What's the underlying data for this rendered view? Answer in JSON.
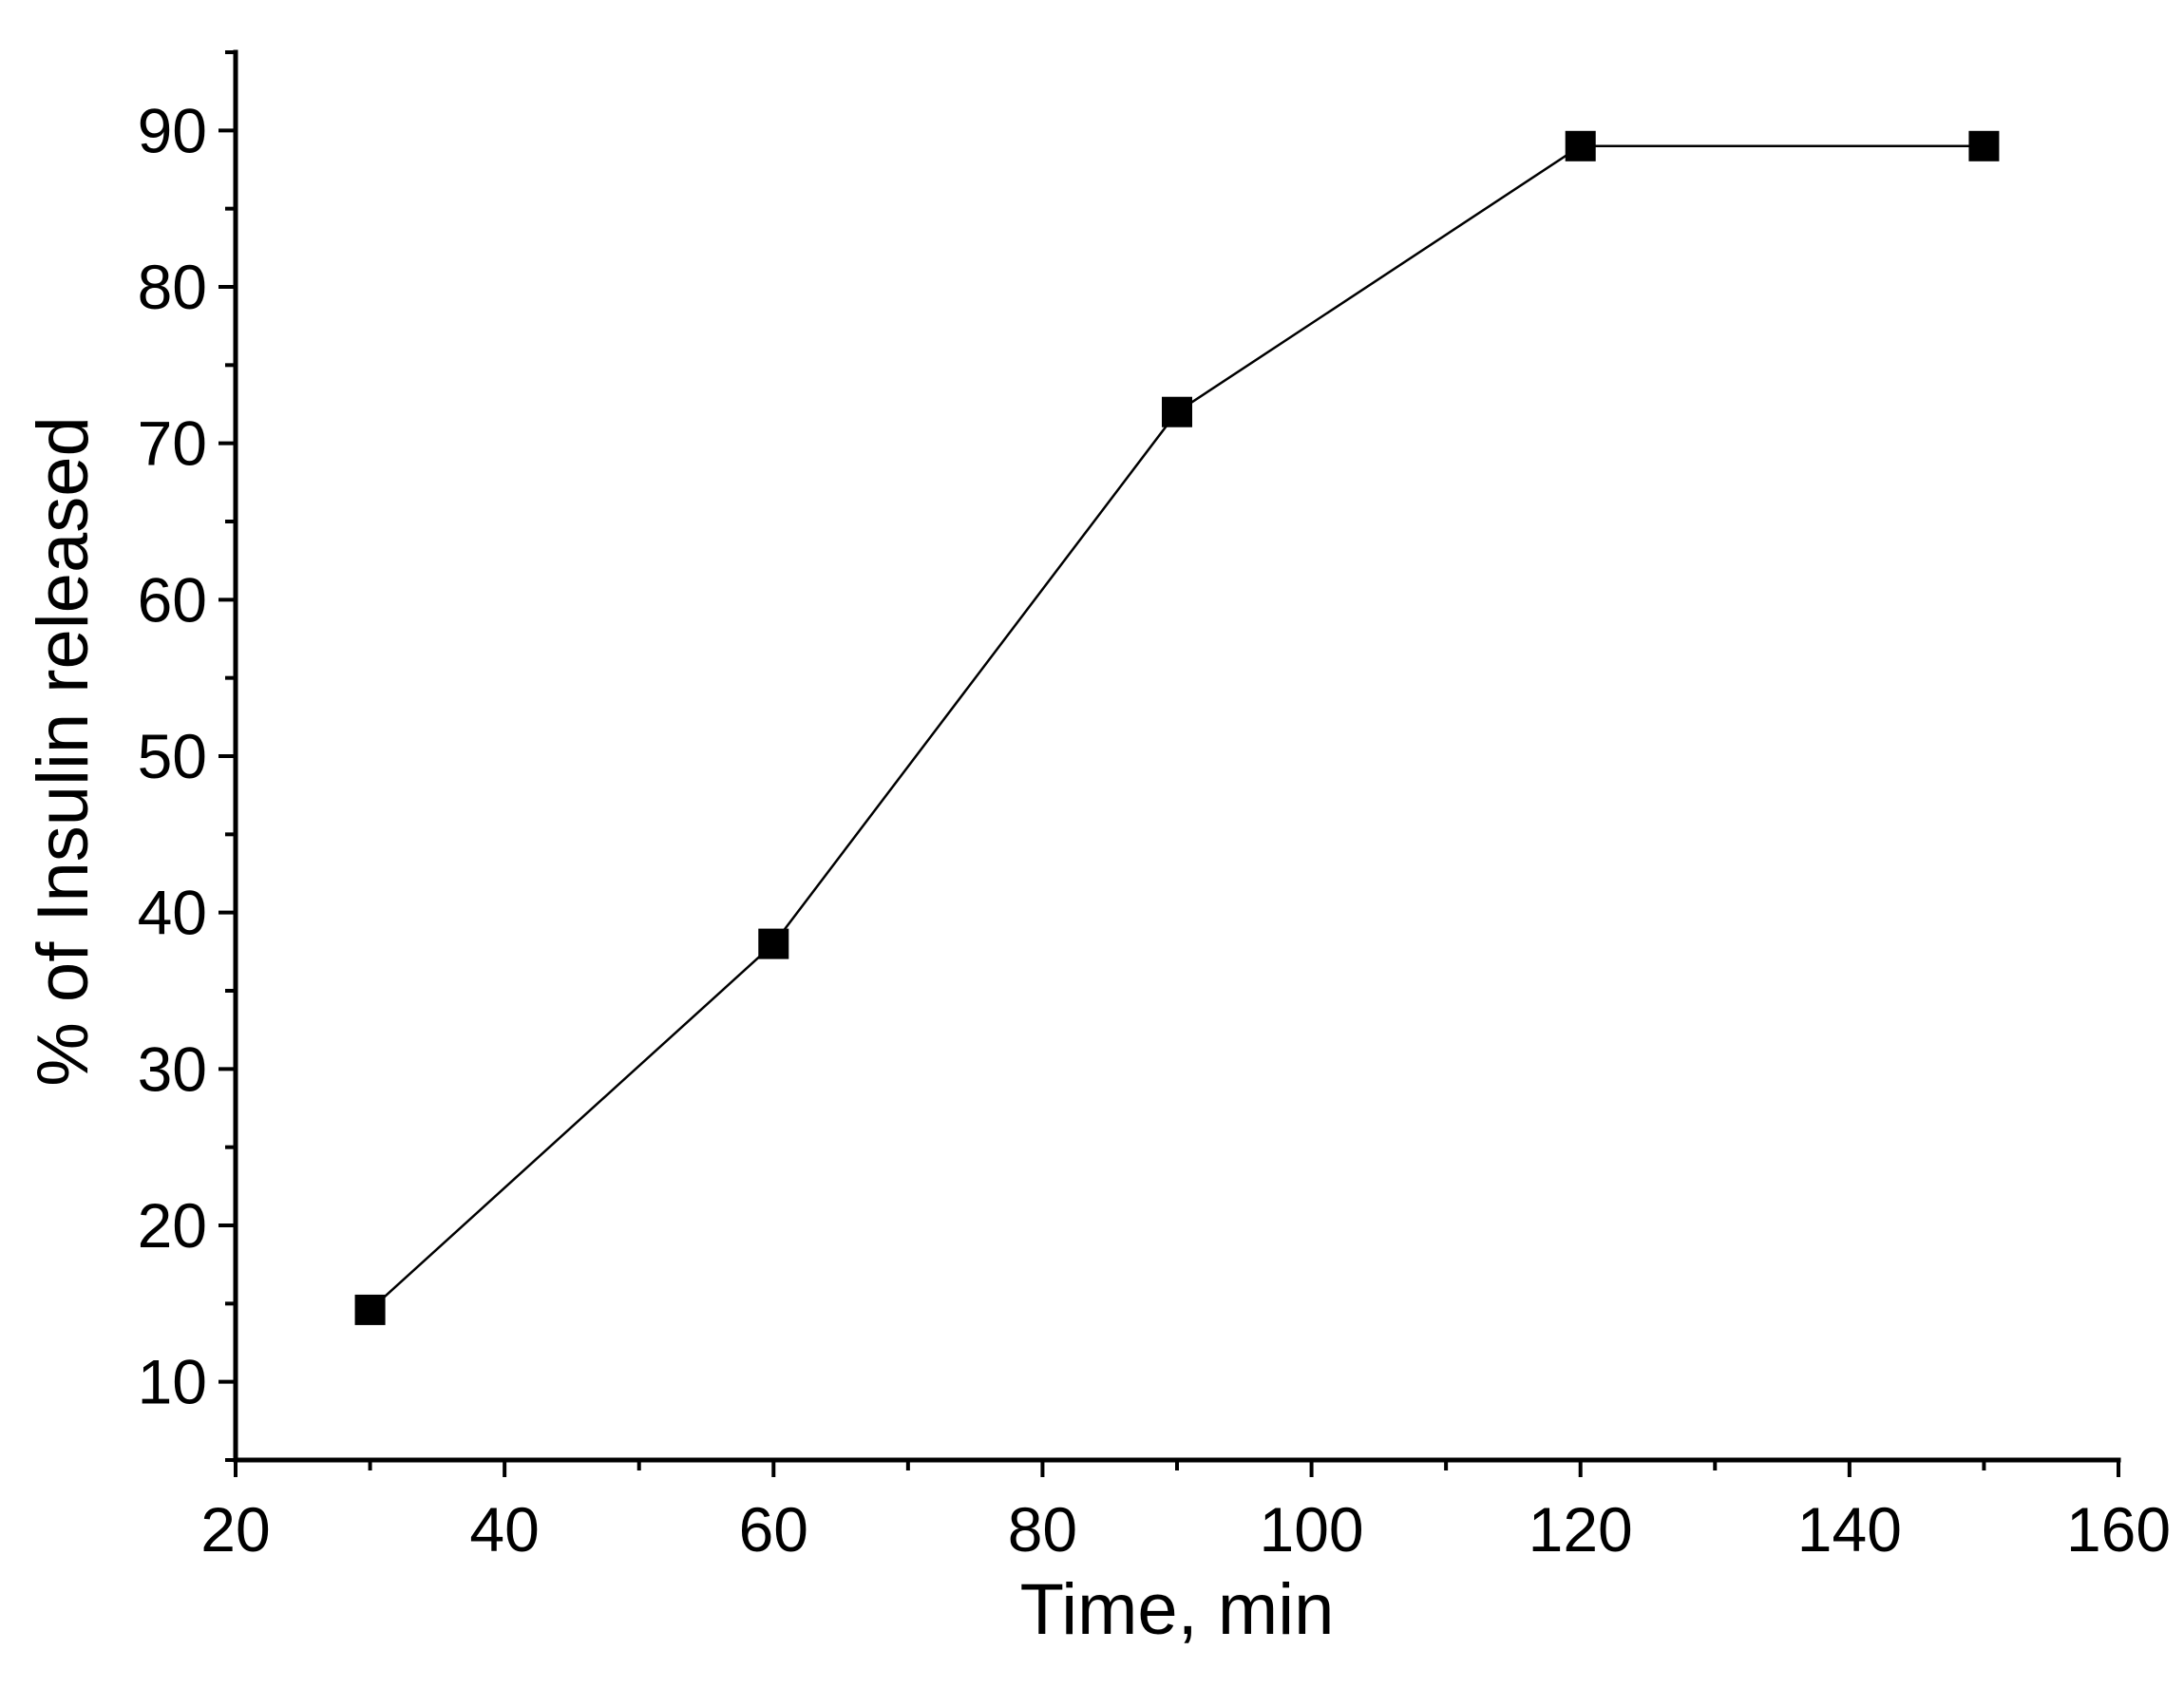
{
  "chart_data": {
    "type": "line",
    "title": "",
    "xlabel": "Time, min",
    "ylabel": "% of Insulin released",
    "xlim": [
      20,
      160
    ],
    "ylim": [
      5,
      95
    ],
    "x_ticks": [
      20,
      40,
      60,
      80,
      100,
      120,
      140,
      160
    ],
    "x_tick_labels": [
      "20",
      "40",
      "60",
      "80",
      "100",
      "120",
      "140",
      "160"
    ],
    "y_ticks": [
      10,
      20,
      30,
      40,
      50,
      60,
      70,
      80,
      90
    ],
    "y_tick_labels": [
      "10",
      "20",
      "30",
      "40",
      "50",
      "60",
      "70",
      "80",
      "90"
    ],
    "grid": false,
    "legend": "none",
    "marker": "square",
    "series": [
      {
        "x": [
          30,
          60,
          90,
          120,
          150
        ],
        "y": [
          14.6,
          38,
          72,
          89,
          89
        ],
        "color": "#000000"
      }
    ]
  }
}
